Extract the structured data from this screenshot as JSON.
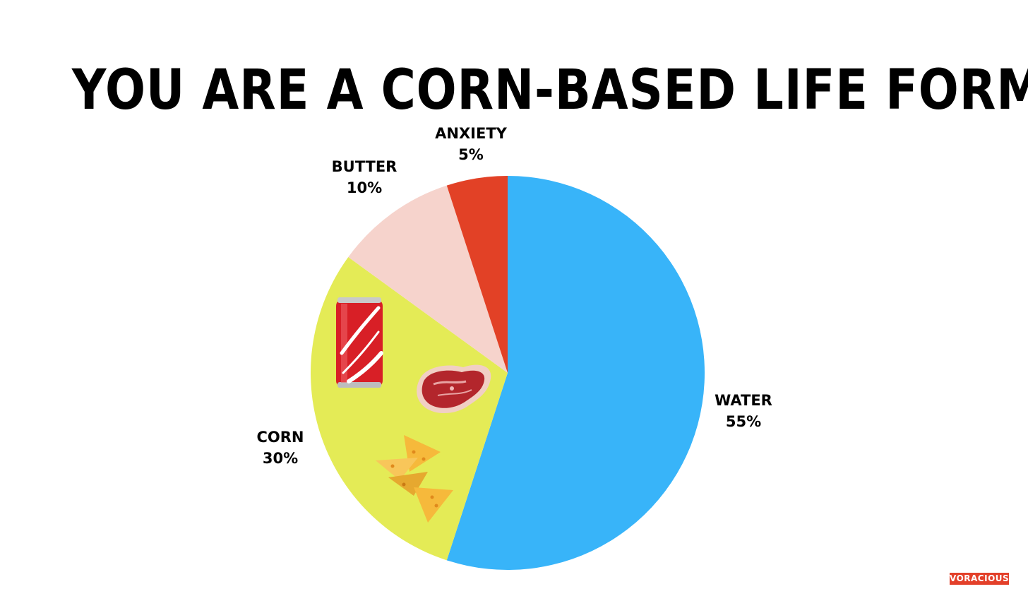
{
  "chart_data": {
    "type": "pie",
    "title": "YOU ARE A CORN-BASED LIFE FORM",
    "slices": [
      {
        "name": "WATER",
        "value": 55,
        "value_label": "55%",
        "color": "#38b4f9"
      },
      {
        "name": "CORN",
        "value": 30,
        "value_label": "30%",
        "color": "#e4eb56"
      },
      {
        "name": "BUTTER",
        "value": 10,
        "value_label": "10%",
        "color": "#f6d3cc"
      },
      {
        "name": "ANXIETY",
        "value": 5,
        "value_label": "5%",
        "color": "#e24126"
      }
    ],
    "start": "12 o'clock",
    "direction": "clockwise",
    "legend": "none"
  },
  "brand": {
    "text": "VORACIOUS",
    "color": "#e3402a"
  },
  "icons": [
    "soda-can-icon",
    "steak-icon",
    "tortilla-chips-icon"
  ]
}
